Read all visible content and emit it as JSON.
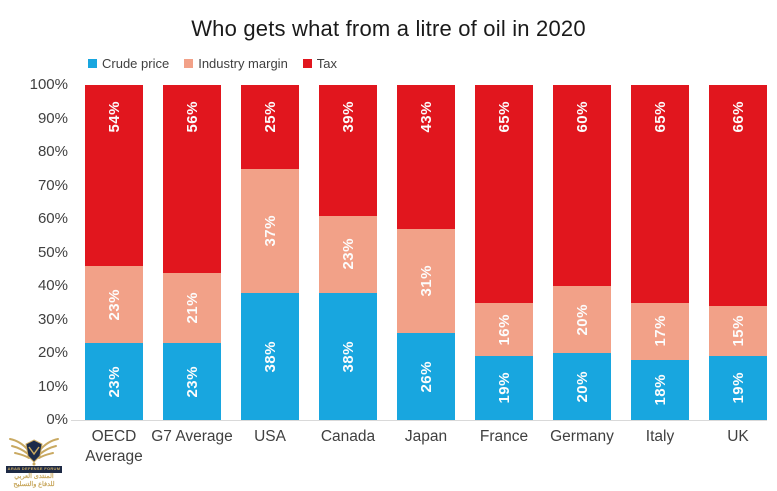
{
  "title": "Who gets what from a litre of oil in 2020",
  "y_axis": {
    "ticks": [
      "100%",
      "90%",
      "80%",
      "70%",
      "60%",
      "50%",
      "40%",
      "30%",
      "20%",
      "10%",
      "0%"
    ]
  },
  "chart_data": {
    "type": "bar",
    "stacked": true,
    "title": "Who gets what from a litre of oil in 2020",
    "xlabel": "",
    "ylabel": "",
    "ylim": [
      0,
      100
    ],
    "grid": false,
    "legend_position": "top-left",
    "value_suffix": "%",
    "categories": [
      "OECD Average",
      "G7 Average",
      "USA",
      "Canada",
      "Japan",
      "France",
      "Germany",
      "Italy",
      "UK"
    ],
    "series": [
      {
        "name": "Crude price",
        "color": "#18a6df",
        "values": [
          23,
          23,
          38,
          38,
          26,
          19,
          20,
          18,
          19
        ]
      },
      {
        "name": "Industry margin",
        "color": "#f2a188",
        "values": [
          23,
          21,
          37,
          23,
          31,
          16,
          20,
          17,
          15
        ]
      },
      {
        "name": "Tax",
        "color": "#e1161e",
        "values": [
          54,
          56,
          25,
          39,
          43,
          65,
          60,
          65,
          66
        ]
      }
    ],
    "axis_text_color": "#404040",
    "bar_label_color": "#fcfcfc"
  },
  "watermark": {
    "name_en": "ARAB DEFENSE FORUM",
    "name_ar": "المنتدى العربي للدفاع والتسليح"
  }
}
